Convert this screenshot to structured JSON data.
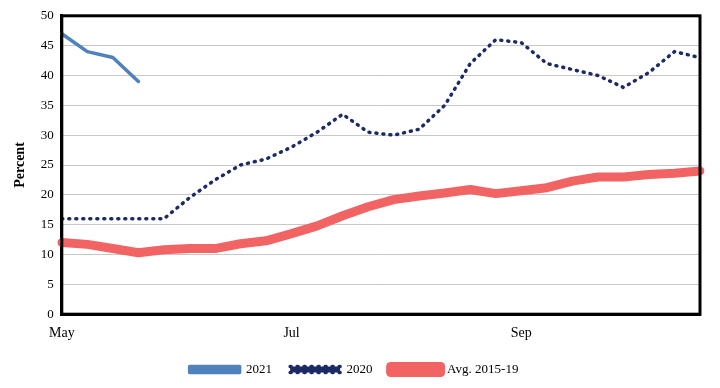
{
  "chart_data": {
    "type": "line",
    "categories": [
      "May",
      null,
      null,
      null,
      null,
      null,
      null,
      null,
      null,
      "Jul",
      null,
      null,
      null,
      null,
      null,
      null,
      null,
      null,
      "Sep",
      null,
      null,
      null,
      null,
      null,
      null,
      null
    ],
    "series": [
      {
        "name": "Avg. 2015-19",
        "color": "#f26464",
        "line_style": "solid",
        "marker": "none",
        "values": [
          12,
          11.7,
          11,
          10.3,
          10.8,
          11,
          11,
          11.8,
          12.3,
          13.5,
          14.8,
          16.5,
          18,
          19.2,
          19.8,
          20.3,
          20.9,
          20.2,
          20.7,
          21.2,
          22.3,
          23,
          23,
          23.4,
          23.6,
          24
        ]
      },
      {
        "name": "2020",
        "color": "#1c2a66",
        "line_style": "dotted",
        "marker": "none",
        "values": [
          16,
          16,
          16,
          16,
          16,
          19.5,
          22.5,
          25,
          26,
          28,
          30.5,
          33.5,
          30.5,
          30,
          31,
          35,
          42,
          46,
          45.5,
          42,
          41,
          40,
          38,
          40.5,
          44,
          43
        ]
      },
      {
        "name": "2021",
        "color": "#4f81bd",
        "line_style": "solid",
        "marker": "none",
        "values": [
          47,
          44,
          43,
          39,
          null,
          null,
          null,
          null,
          null,
          null,
          null,
          null,
          null,
          null,
          null,
          null,
          null,
          null,
          null,
          null,
          null,
          null,
          null,
          null,
          null,
          null
        ]
      }
    ],
    "y_label": "Percent",
    "ylim": [
      0,
      50
    ],
    "yticks": [
      0,
      5,
      10,
      15,
      20,
      25,
      30,
      35,
      40,
      45,
      50
    ],
    "grid": true,
    "legend": "bottom"
  }
}
